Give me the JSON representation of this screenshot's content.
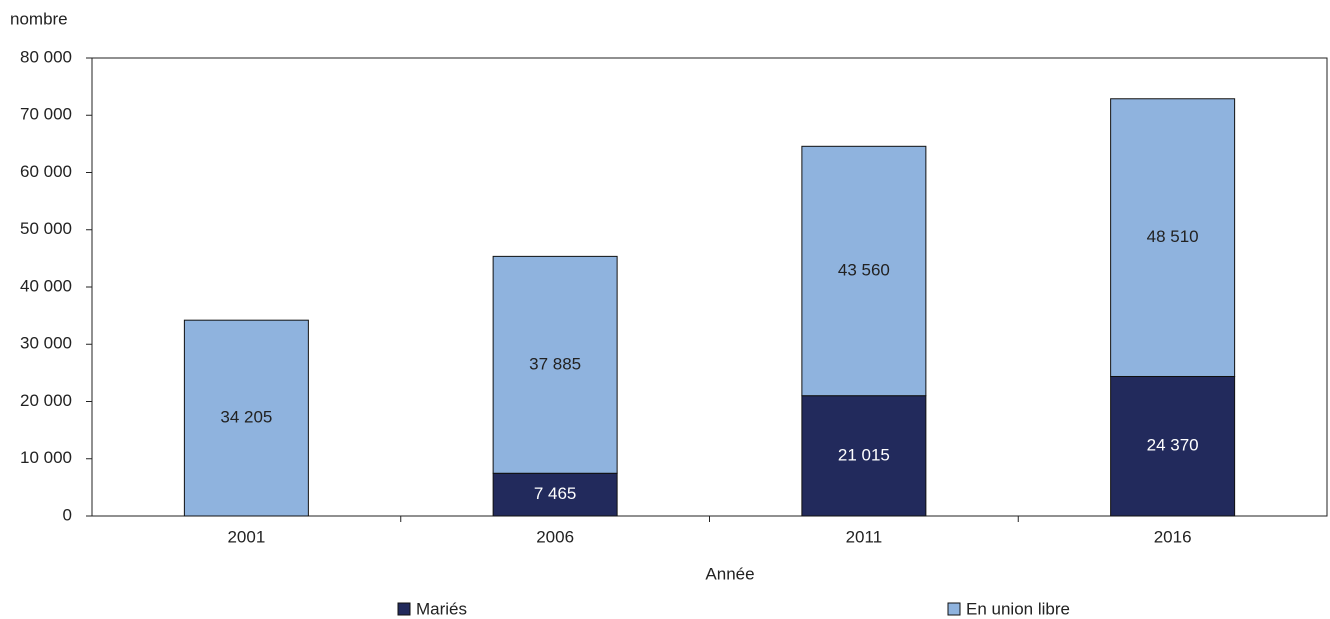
{
  "chart_data": {
    "type": "stacked_bar",
    "y_axis_label": "nombre",
    "x_axis_label": "Année",
    "categories": [
      "2001",
      "2006",
      "2011",
      "2016"
    ],
    "series": [
      {
        "name": "Mariés",
        "color": "#222a5c",
        "values": [
          0,
          7465,
          21015,
          24370
        ],
        "value_labels": [
          "0",
          "7 465",
          "21 015",
          "24 370"
        ]
      },
      {
        "name": "En union libre",
        "color": "#8fb3de",
        "values": [
          34205,
          37885,
          43560,
          48510
        ],
        "value_labels": [
          "34 205",
          "37 885",
          "43 560",
          "48 510"
        ]
      }
    ],
    "ylim": [
      0,
      80000
    ],
    "yticks": [
      0,
      {
        "value": 10000,
        "label": "10 000"
      },
      {
        "value": 20000,
        "label": "20 000"
      },
      {
        "value": 30000,
        "label": "30 000"
      },
      {
        "value": 40000,
        "label": "40 000"
      },
      {
        "value": 50000,
        "label": "50 000"
      },
      {
        "value": 60000,
        "label": "60 000"
      },
      {
        "value": 70000,
        "label": "70 000"
      },
      {
        "value": 80000,
        "label": "80 000"
      }
    ],
    "grid": false
  }
}
